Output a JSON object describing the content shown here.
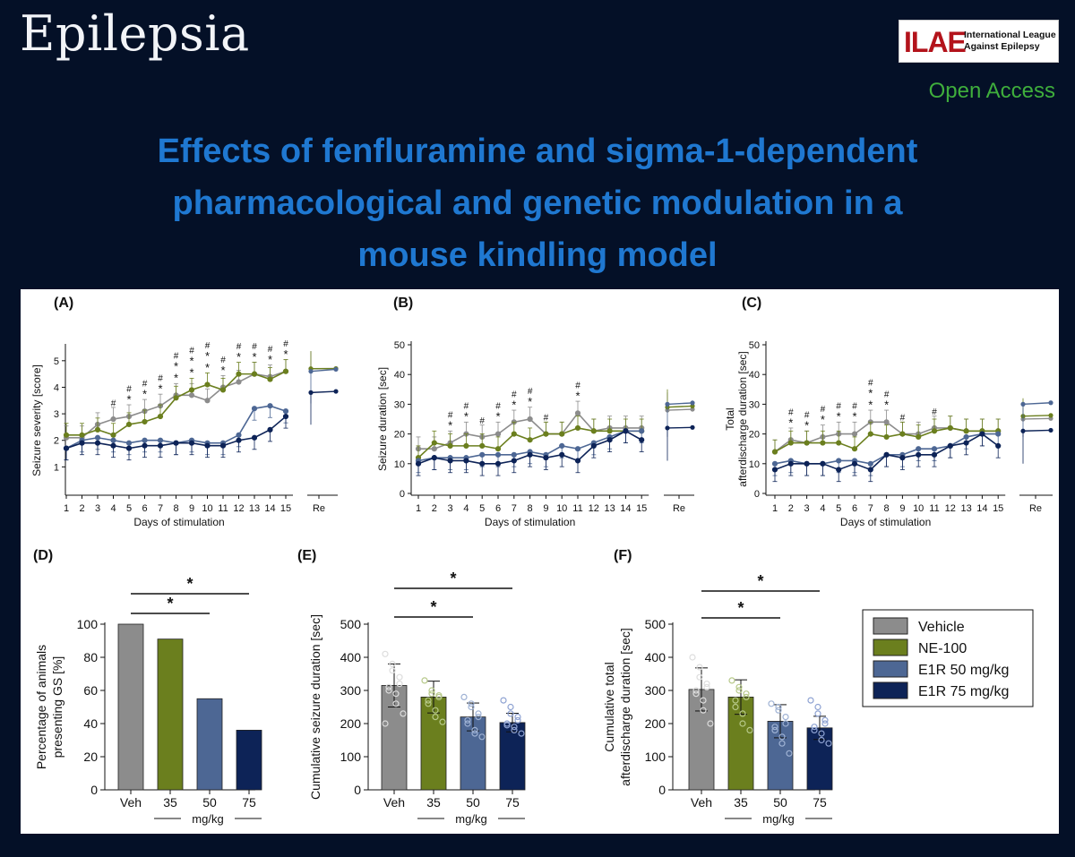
{
  "header": {
    "journal": "Epilepsia",
    "publisher_mark": "ILAE",
    "publisher_line1": "International League",
    "publisher_line2": "Against Epilepsy",
    "access": "Open Access"
  },
  "title_lines": [
    "Effects of fenfluramine and sigma-1-dependent",
    "pharmacological and genetic modulation in a",
    "mouse kindling model"
  ],
  "colors": {
    "background": "#041027",
    "title": "#1f78d1",
    "open_access": "#3fae3c",
    "vehicle": "#8c8c8c",
    "ne100": "#6b7f1e",
    "e1r50": "#4d6794",
    "e1r75": "#0d2357"
  },
  "legend": [
    "Vehicle",
    "NE-100",
    "E1R 50 mg/kg",
    "E1R 75 mg/kg"
  ],
  "chart_data": [
    {
      "panel": "(A)",
      "type": "line",
      "xlabel": "Days of stimulation",
      "ylabel": "Seizure severity [score]",
      "x": [
        1,
        2,
        3,
        4,
        5,
        6,
        7,
        8,
        9,
        10,
        11,
        12,
        13,
        14,
        15
      ],
      "ylim": [
        0,
        5.5
      ],
      "yticks": [
        1,
        2,
        3,
        4,
        5
      ],
      "extra_x_label": "Re",
      "series": [
        {
          "name": "Vehicle",
          "values": [
            2.1,
            2.1,
            2.6,
            2.8,
            2.9,
            3.1,
            3.3,
            3.7,
            3.7,
            3.5,
            4.0,
            4.2,
            4.5,
            4.4,
            4.6
          ],
          "re": 4.7
        },
        {
          "name": "NE-100",
          "values": [
            2.2,
            2.2,
            2.4,
            2.2,
            2.6,
            2.7,
            2.9,
            3.6,
            3.9,
            4.1,
            3.9,
            4.5,
            4.5,
            4.3,
            4.6
          ],
          "re": 4.7
        },
        {
          "name": "E1R 50 mg/kg",
          "values": [
            1.7,
            2.0,
            2.1,
            2.0,
            1.9,
            2.0,
            2.0,
            1.9,
            2.0,
            1.9,
            1.9,
            2.2,
            3.2,
            3.3,
            3.1
          ],
          "re": 4.6
        },
        {
          "name": "E1R 75 mg/kg",
          "values": [
            1.7,
            1.9,
            1.9,
            1.8,
            1.7,
            1.8,
            1.8,
            1.9,
            1.9,
            1.8,
            1.8,
            2.0,
            2.1,
            2.4,
            2.9
          ],
          "re": 3.8
        }
      ],
      "annotations": [
        {
          "x": 4,
          "marks": "#"
        },
        {
          "x": 5,
          "marks": "#*"
        },
        {
          "x": 6,
          "marks": "#*"
        },
        {
          "x": 7,
          "marks": "#*"
        },
        {
          "x": 8,
          "marks": "#**"
        },
        {
          "x": 9,
          "marks": "#**"
        },
        {
          "x": 10,
          "marks": "#**"
        },
        {
          "x": 11,
          "marks": "#*"
        },
        {
          "x": 12,
          "marks": "#*"
        },
        {
          "x": 13,
          "marks": "#*"
        },
        {
          "x": 14,
          "marks": "#*"
        },
        {
          "x": 15,
          "marks": "#*"
        }
      ]
    },
    {
      "panel": "(B)",
      "type": "line",
      "xlabel": "Days of stimulation",
      "ylabel": "Seizure duration [sec]",
      "x": [
        1,
        2,
        3,
        4,
        5,
        6,
        7,
        8,
        9,
        10,
        11,
        12,
        13,
        14,
        15
      ],
      "ylim": [
        0,
        50
      ],
      "yticks": [
        0,
        10,
        20,
        30,
        40,
        50
      ],
      "extra_x_label": "Re",
      "series": [
        {
          "name": "Vehicle",
          "values": [
            15,
            15,
            17,
            20,
            19,
            20,
            24,
            25,
            20,
            20,
            27,
            21,
            22,
            22,
            22
          ],
          "re": 28
        },
        {
          "name": "NE-100",
          "values": [
            12,
            17,
            16,
            16,
            16,
            15,
            20,
            18,
            20,
            20,
            22,
            21,
            21,
            21,
            21
          ],
          "re": 29
        },
        {
          "name": "E1R 50 mg/kg",
          "values": [
            11,
            12,
            12,
            12,
            13,
            13,
            13,
            14,
            13,
            16,
            15,
            17,
            19,
            21,
            21
          ],
          "re": 30
        },
        {
          "name": "E1R 75 mg/kg",
          "values": [
            10,
            12,
            11,
            11,
            10,
            10,
            11,
            13,
            12,
            13,
            11,
            16,
            18,
            21,
            18
          ],
          "re": 22
        }
      ],
      "annotations": [
        {
          "x": 3,
          "marks": "#*"
        },
        {
          "x": 4,
          "marks": "#*"
        },
        {
          "x": 5,
          "marks": "#"
        },
        {
          "x": 6,
          "marks": "#*"
        },
        {
          "x": 7,
          "marks": "#*"
        },
        {
          "x": 8,
          "marks": "#*"
        },
        {
          "x": 9,
          "marks": "#"
        },
        {
          "x": 11,
          "marks": "#*"
        }
      ]
    },
    {
      "panel": "(C)",
      "type": "line",
      "xlabel": "Days of stimulation",
      "ylabel": [
        "Total",
        "afterdischarge duration [sec]"
      ],
      "x": [
        1,
        2,
        3,
        4,
        5,
        6,
        7,
        8,
        9,
        10,
        11,
        12,
        13,
        14,
        15
      ],
      "ylim": [
        0,
        50
      ],
      "yticks": [
        0,
        10,
        20,
        30,
        40,
        50
      ],
      "extra_x_label": "Re",
      "series": [
        {
          "name": "Vehicle",
          "values": [
            14,
            18,
            17,
            19,
            20,
            20,
            24,
            24,
            20,
            20,
            22,
            22,
            21,
            21,
            21
          ],
          "re": 25
        },
        {
          "name": "NE-100",
          "values": [
            14,
            17,
            17,
            17,
            17,
            15,
            20,
            19,
            20,
            19,
            21,
            22,
            21,
            21,
            21
          ],
          "re": 26
        },
        {
          "name": "E1R 50 mg/kg",
          "values": [
            10,
            11,
            10,
            10,
            11,
            11,
            10,
            13,
            13,
            15,
            15,
            16,
            19,
            20,
            20
          ],
          "re": 30
        },
        {
          "name": "E1R 75 mg/kg",
          "values": [
            8,
            10,
            10,
            10,
            8,
            10,
            8,
            13,
            12,
            13,
            13,
            16,
            17,
            20,
            16
          ],
          "re": 21
        }
      ],
      "annotations": [
        {
          "x": 2,
          "marks": "#*"
        },
        {
          "x": 3,
          "marks": "#*"
        },
        {
          "x": 4,
          "marks": "#*"
        },
        {
          "x": 5,
          "marks": "#*"
        },
        {
          "x": 6,
          "marks": "#*"
        },
        {
          "x": 7,
          "marks": "#**"
        },
        {
          "x": 8,
          "marks": "#*"
        },
        {
          "x": 9,
          "marks": "#"
        },
        {
          "x": 11,
          "marks": "#"
        }
      ]
    },
    {
      "panel": "(D)",
      "type": "bar",
      "ylabel": [
        "Percentage of animals",
        "presenting GS [%]"
      ],
      "categories": [
        "Veh",
        "35",
        "50",
        "75"
      ],
      "group_label": "mg/kg",
      "values": [
        100,
        91,
        55,
        36
      ],
      "ylim": [
        0,
        100
      ],
      "yticks": [
        0,
        20,
        40,
        60,
        80,
        100
      ],
      "significance": [
        {
          "from": "Veh",
          "to": "50",
          "label": "*"
        },
        {
          "from": "Veh",
          "to": "75",
          "label": "*"
        }
      ]
    },
    {
      "panel": "(E)",
      "type": "bar",
      "ylabel": "Cumulative seizure duration [sec]",
      "categories": [
        "Veh",
        "35",
        "50",
        "75"
      ],
      "group_label": "mg/kg",
      "values": [
        315,
        280,
        220,
        203
      ],
      "errors": [
        65,
        48,
        42,
        28
      ],
      "ylim": [
        0,
        500
      ],
      "yticks": [
        0,
        100,
        200,
        300,
        400,
        500
      ],
      "points": [
        [
          410,
          380,
          360,
          340,
          320,
          310,
          300,
          290,
          260,
          230,
          200
        ],
        [
          330,
          300,
          290,
          285,
          280,
          270,
          260,
          240,
          220,
          205
        ],
        [
          280,
          260,
          250,
          230,
          220,
          210,
          200,
          180,
          170,
          160
        ],
        [
          270,
          250,
          230,
          220,
          210,
          200,
          195,
          190,
          180,
          170
        ]
      ],
      "significance": [
        {
          "from": "Veh",
          "to": "50",
          "label": "*"
        },
        {
          "from": "Veh",
          "to": "75",
          "label": "*"
        }
      ]
    },
    {
      "panel": "(F)",
      "type": "bar",
      "ylabel": [
        "Cumulative total",
        "afterdischarge duration [sec]"
      ],
      "categories": [
        "Veh",
        "35",
        "50",
        "75"
      ],
      "group_label": "mg/kg",
      "values": [
        303,
        280,
        207,
        187
      ],
      "errors": [
        65,
        52,
        50,
        35
      ],
      "ylim": [
        0,
        500
      ],
      "yticks": [
        0,
        100,
        200,
        300,
        400,
        500
      ],
      "points": [
        [
          400,
          370,
          340,
          320,
          310,
          300,
          290,
          270,
          240,
          200
        ],
        [
          330,
          310,
          300,
          290,
          280,
          270,
          250,
          230,
          200,
          180
        ],
        [
          260,
          250,
          240,
          220,
          200,
          190,
          180,
          160,
          140,
          110
        ],
        [
          270,
          250,
          230,
          210,
          200,
          190,
          180,
          170,
          150,
          140
        ]
      ],
      "significance": [
        {
          "from": "Veh",
          "to": "50",
          "label": "*"
        },
        {
          "from": "Veh",
          "to": "75",
          "label": "*"
        }
      ]
    }
  ]
}
